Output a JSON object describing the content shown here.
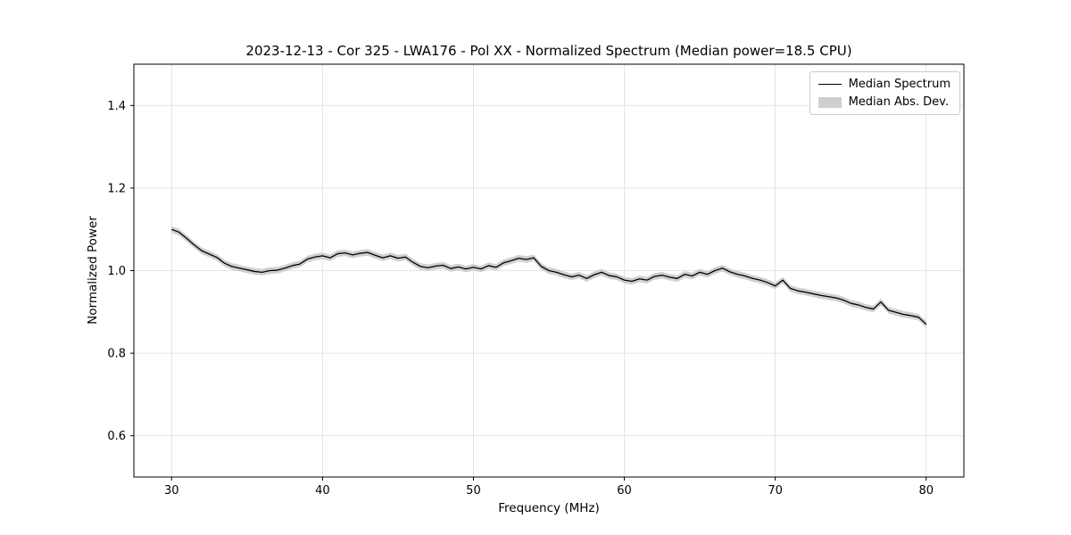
{
  "figure": {
    "title": "2023-12-13 - Cor 325 - LWA176 - Pol XX - Normalized Spectrum (Median power=18.5 CPU)"
  },
  "chart_data": {
    "type": "line",
    "title": "2023-12-13 - Cor 325 - LWA176 - Pol XX - Normalized Spectrum (Median power=18.5 CPU)",
    "xlabel": "Frequency (MHz)",
    "ylabel": "Normalized Power",
    "xlim": [
      27.5,
      82.5
    ],
    "ylim": [
      0.5,
      1.5
    ],
    "xticks": [
      30,
      40,
      50,
      60,
      70,
      80
    ],
    "yticks": [
      0.6,
      0.8,
      1.0,
      1.2,
      1.4
    ],
    "grid": true,
    "grid_color": "#dddddd",
    "line_color": "#000000",
    "band_color": "#c8c8c8",
    "band_halfwidth": 0.008,
    "legend": {
      "position": "upper right",
      "entries": [
        {
          "label": "Median Spectrum",
          "type": "line",
          "color": "#000000"
        },
        {
          "label": "Median Abs. Dev.",
          "type": "patch",
          "color": "#cfcfcf"
        }
      ]
    },
    "series": [
      {
        "name": "Median Spectrum",
        "x_start": 30.0,
        "x_step": 0.5,
        "values": [
          1.1,
          1.093,
          1.078,
          1.062,
          1.048,
          1.04,
          1.032,
          1.018,
          1.01,
          1.006,
          1.002,
          0.998,
          0.996,
          1.0,
          1.001,
          1.006,
          1.012,
          1.016,
          1.028,
          1.033,
          1.036,
          1.031,
          1.041,
          1.043,
          1.038,
          1.042,
          1.044,
          1.037,
          1.031,
          1.036,
          1.03,
          1.033,
          1.02,
          1.01,
          1.007,
          1.011,
          1.013,
          1.005,
          1.009,
          1.004,
          1.008,
          1.004,
          1.012,
          1.008,
          1.019,
          1.024,
          1.03,
          1.027,
          1.031,
          1.01,
          1.0,
          0.996,
          0.99,
          0.985,
          0.989,
          0.981,
          0.99,
          0.996,
          0.988,
          0.985,
          0.977,
          0.974,
          0.98,
          0.977,
          0.986,
          0.989,
          0.984,
          0.981,
          0.991,
          0.987,
          0.996,
          0.991,
          1.0,
          1.006,
          0.997,
          0.991,
          0.987,
          0.981,
          0.977,
          0.971,
          0.963,
          0.977,
          0.957,
          0.951,
          0.948,
          0.944,
          0.94,
          0.937,
          0.934,
          0.929,
          0.921,
          0.917,
          0.911,
          0.907,
          0.924,
          0.904,
          0.899,
          0.894,
          0.891,
          0.887,
          0.87
        ]
      }
    ]
  }
}
